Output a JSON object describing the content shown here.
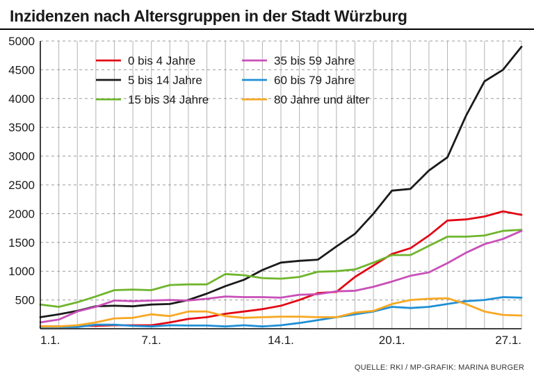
{
  "title": "Inzidenzen nach Altersgruppen in der Stadt Würzburg",
  "title_fontsize": 23,
  "source": "QUELLE: RKI / MP-GRAFIK: MARINA BURGER",
  "chart": {
    "type": "line",
    "background_color": "#ffffff",
    "plot_background_color": "#ffffff",
    "grid_color_x": "#b3b3b3",
    "grid_color_y_dash": "#999999",
    "axis_color": "#000000",
    "line_width": 2.8,
    "tick_fontsize": 17,
    "legend_fontsize": 17,
    "x": {
      "min": 0,
      "max": 26,
      "major_ticks": [
        0,
        6,
        13,
        19,
        26
      ],
      "major_labels": [
        "1.1.",
        "7.1.",
        "14.1.",
        "20.1.",
        "27.1."
      ]
    },
    "y": {
      "min": 0,
      "max": 5000,
      "major_ticks": [
        500,
        1000,
        1500,
        2000,
        2500,
        3000,
        3500,
        4000,
        4500,
        5000
      ]
    },
    "legend": {
      "position": "top-left-inside",
      "columns": 2,
      "items": [
        {
          "key": "s0",
          "label": "0 bis 4 Jahre",
          "color": "#e30613"
        },
        {
          "key": "s1",
          "label": "5 bis 14 Jahre",
          "color": "#1a1a1a"
        },
        {
          "key": "s2",
          "label": "15 bis 34 Jahre",
          "color": "#6fb52c"
        },
        {
          "key": "s3",
          "label": "35 bis 59 Jahre",
          "color": "#c84fb8"
        },
        {
          "key": "s4",
          "label": "60 bis 79 Jahre",
          "color": "#1f8fd6"
        },
        {
          "key": "s5",
          "label": "80 Jahre und älter",
          "color": "#f7a823"
        }
      ]
    },
    "series": {
      "s0": {
        "color": "#e30613",
        "values": [
          40,
          40,
          50,
          50,
          60,
          60,
          60,
          110,
          170,
          200,
          260,
          300,
          340,
          400,
          500,
          620,
          640,
          900,
          1100,
          1300,
          1400,
          1620,
          1880,
          1900,
          1950,
          2040,
          1980
        ]
      },
      "s1": {
        "color": "#1a1a1a",
        "values": [
          200,
          250,
          310,
          390,
          400,
          390,
          420,
          430,
          500,
          610,
          740,
          850,
          1020,
          1150,
          1180,
          1200,
          1430,
          1650,
          2000,
          2400,
          2430,
          2750,
          2980,
          3700,
          4300,
          4500,
          4900
        ]
      },
      "s2": {
        "color": "#6fb52c",
        "values": [
          420,
          380,
          460,
          560,
          670,
          680,
          670,
          760,
          770,
          770,
          950,
          930,
          880,
          870,
          900,
          990,
          1000,
          1030,
          1150,
          1280,
          1280,
          1440,
          1600,
          1600,
          1620,
          1700,
          1720
        ]
      },
      "s3": {
        "color": "#c84fb8",
        "values": [
          110,
          160,
          300,
          380,
          490,
          480,
          490,
          500,
          490,
          520,
          560,
          550,
          550,
          540,
          590,
          600,
          650,
          660,
          730,
          820,
          920,
          980,
          1140,
          1320,
          1470,
          1560,
          1700
        ]
      },
      "s4": {
        "color": "#1f8fd6",
        "values": [
          30,
          30,
          30,
          70,
          70,
          50,
          40,
          60,
          55,
          55,
          40,
          60,
          40,
          60,
          100,
          150,
          200,
          250,
          300,
          380,
          360,
          380,
          430,
          480,
          500,
          550,
          540
        ]
      },
      "s5": {
        "color": "#f7a823",
        "values": [
          40,
          40,
          60,
          110,
          180,
          190,
          250,
          220,
          300,
          300,
          220,
          190,
          200,
          210,
          210,
          200,
          200,
          280,
          310,
          430,
          500,
          520,
          530,
          430,
          300,
          240,
          230
        ]
      }
    }
  }
}
